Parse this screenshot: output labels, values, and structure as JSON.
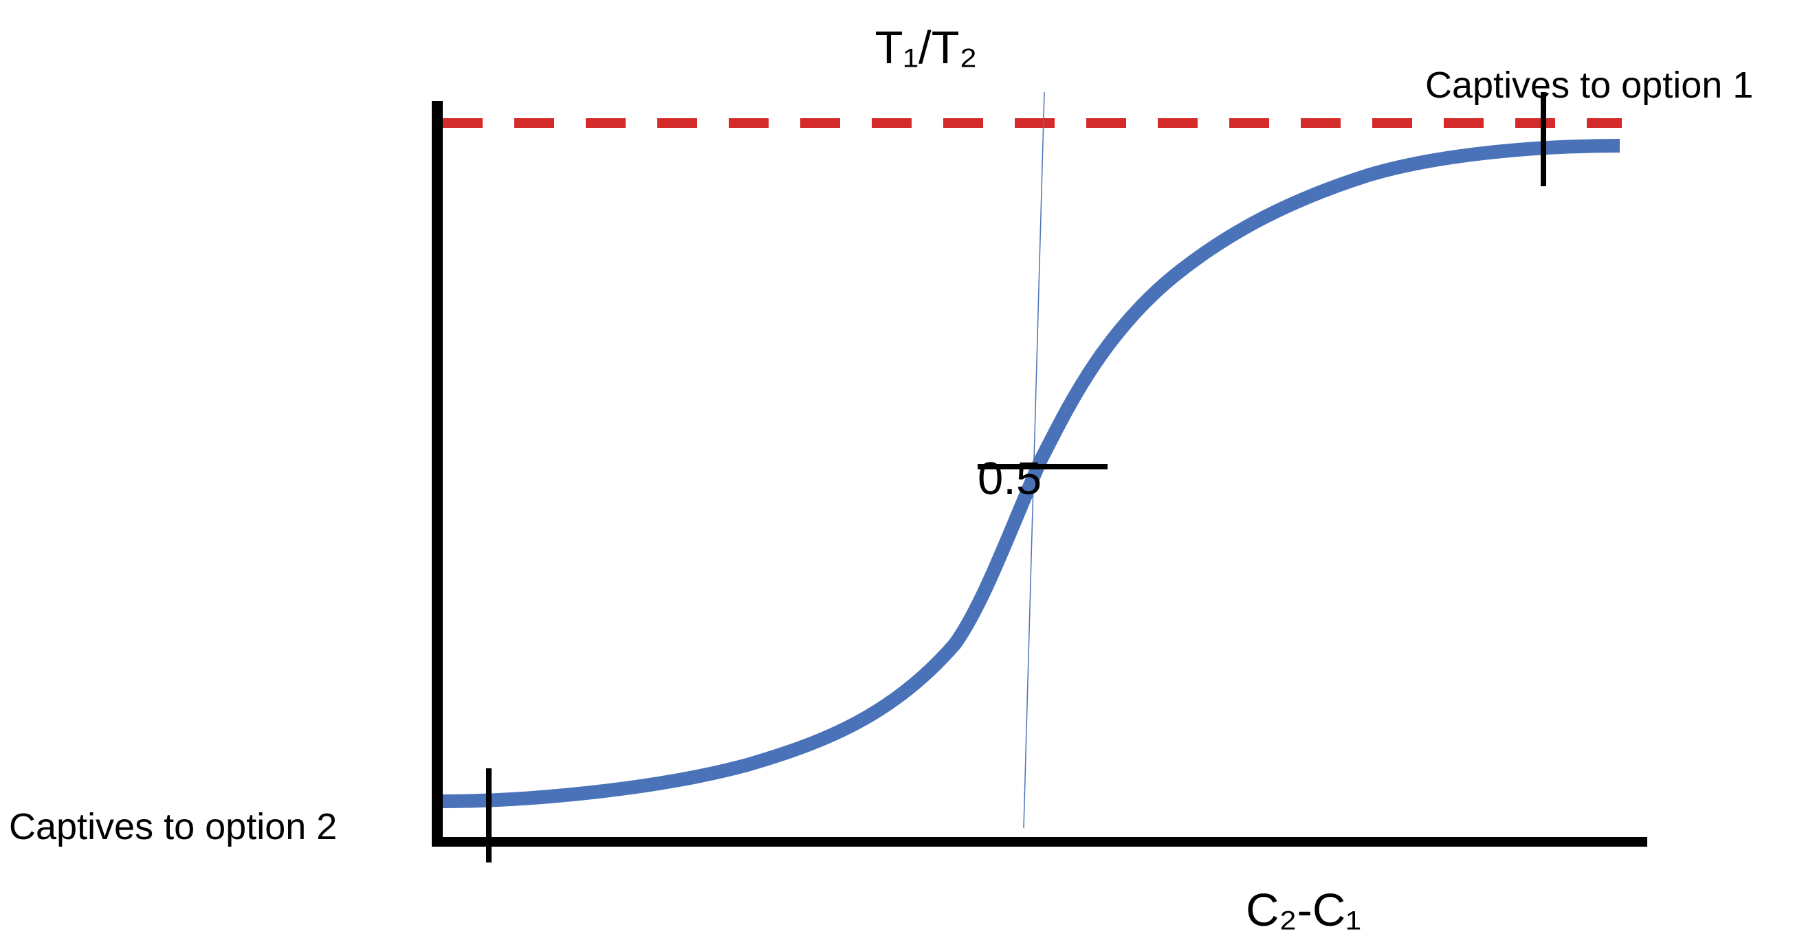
{
  "axes": {
    "y_label": "T₁/T₂",
    "x_label": "C₂-C₁"
  },
  "annotations": {
    "upper": "Captives to option 1",
    "lower": "Captives to option 2",
    "midpoint": "0.5"
  }
}
